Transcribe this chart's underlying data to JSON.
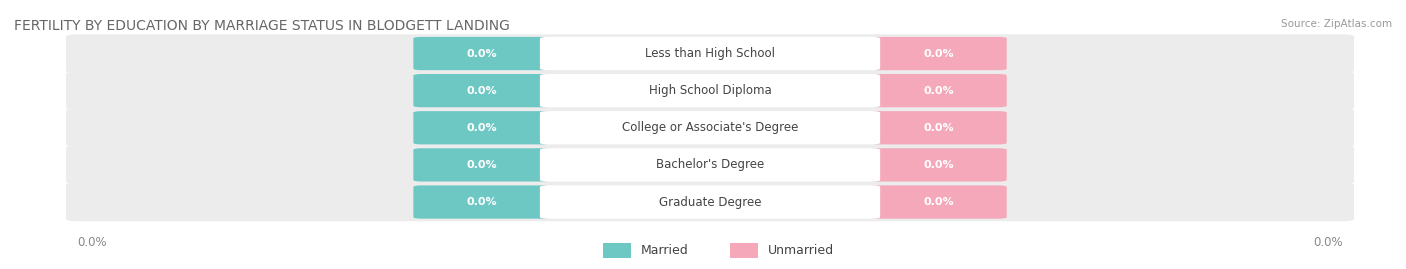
{
  "title": "FERTILITY BY EDUCATION BY MARRIAGE STATUS IN BLODGETT LANDING",
  "source": "Source: ZipAtlas.com",
  "categories": [
    "Less than High School",
    "High School Diploma",
    "College or Associate's Degree",
    "Bachelor's Degree",
    "Graduate Degree"
  ],
  "married_color": "#6dc8c4",
  "unmarried_color": "#f4a8ba",
  "row_bg_color": "#ececec",
  "title_color": "#666666",
  "source_color": "#999999",
  "axis_label_color": "#888888",
  "value_color": "#ffffff",
  "label_color": "#444444",
  "background_color": "#ffffff",
  "title_fontsize": 10,
  "cat_fontsize": 8.5,
  "value_fontsize": 8,
  "legend_fontsize": 9,
  "axis_fontsize": 8.5
}
